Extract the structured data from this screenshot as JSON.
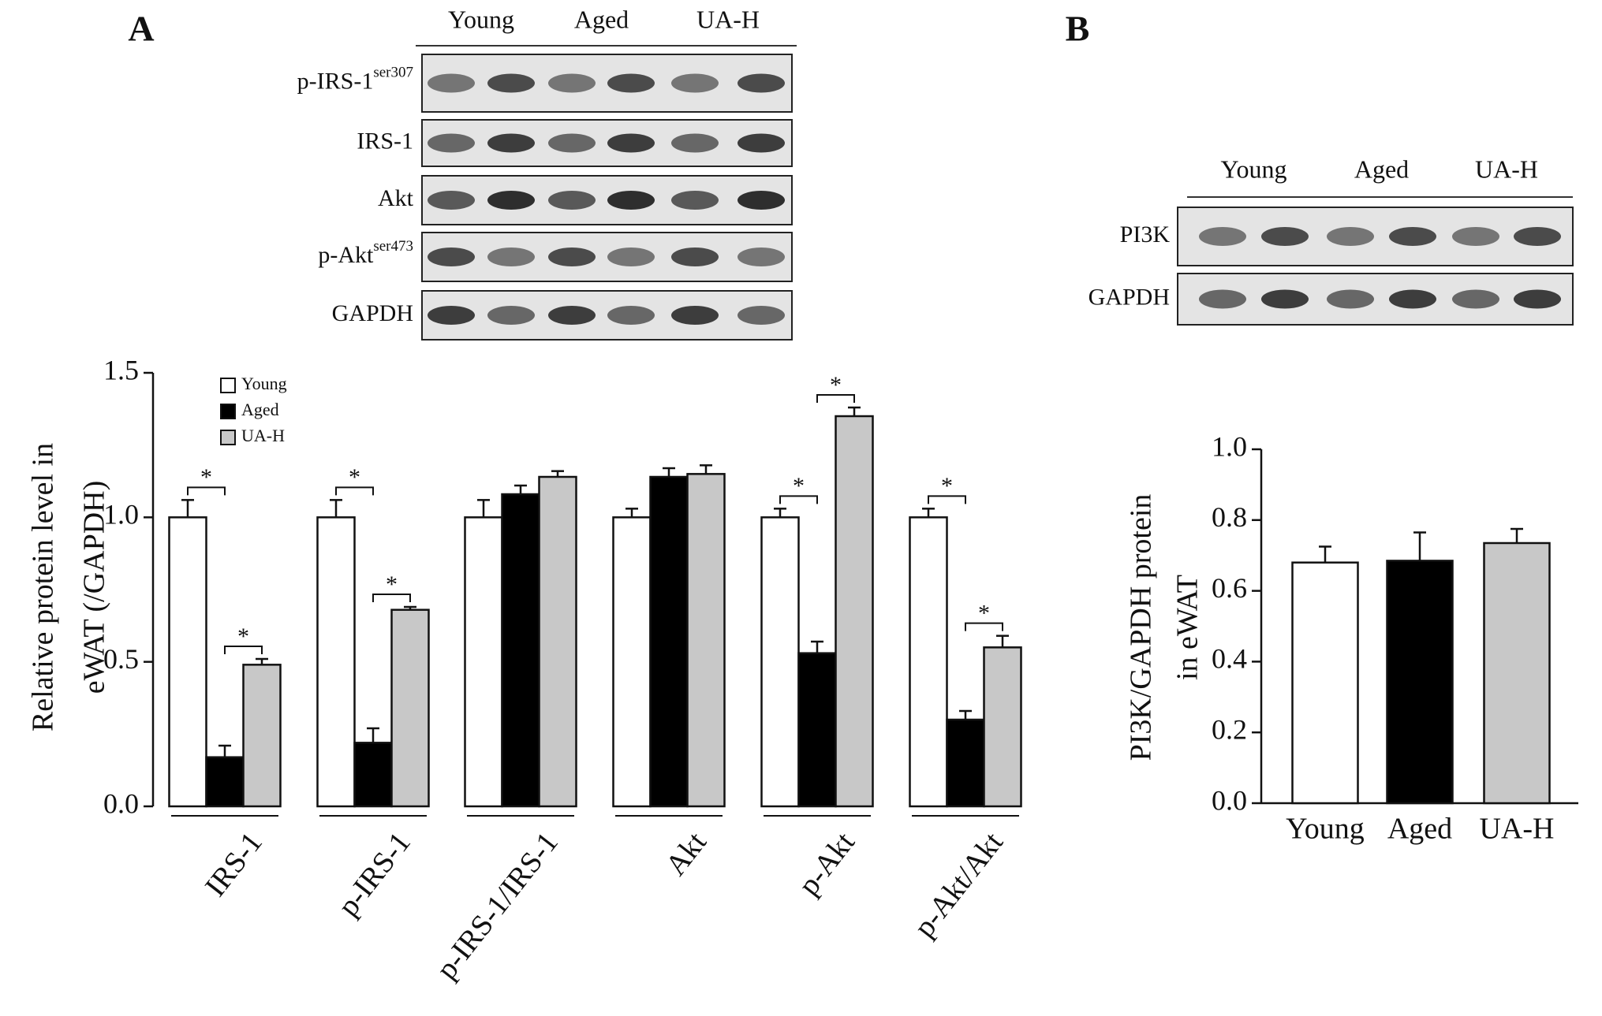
{
  "chart_data": [
    {
      "type": "bar",
      "panel_label": "A",
      "blot": {
        "groups": [
          "Young",
          "Aged",
          "UA-H"
        ],
        "rows": [
          {
            "label": "p-IRS-1",
            "sup": "ser307"
          },
          {
            "label": "IRS-1"
          },
          {
            "label": "Akt"
          },
          {
            "label": "p-Akt",
            "sup": "ser473"
          },
          {
            "label": "GAPDH"
          }
        ]
      },
      "ylabel": [
        "Relative protein level in",
        "eWAT (/GAPDH)"
      ],
      "categories": [
        "IRS-1",
        "p-IRS-1",
        "p-IRS-1/IRS-1",
        "Akt",
        "p-Akt",
        "p-Akt/Akt"
      ],
      "series": [
        {
          "name": "Young",
          "color": "#ffffff",
          "values": [
            1.0,
            1.0,
            1.0,
            1.0,
            1.0,
            1.0
          ],
          "errors": [
            0.06,
            0.06,
            0.06,
            0.03,
            0.03,
            0.03
          ]
        },
        {
          "name": "Aged",
          "color": "#000000",
          "values": [
            0.17,
            0.22,
            1.08,
            1.14,
            0.53,
            0.3
          ],
          "errors": [
            0.04,
            0.05,
            0.03,
            0.03,
            0.04,
            0.03
          ]
        },
        {
          "name": "UA-H",
          "color": "#c8c8c8",
          "values": [
            0.49,
            0.68,
            1.14,
            1.15,
            1.35,
            0.55
          ],
          "errors": [
            0.02,
            0.01,
            0.02,
            0.03,
            0.03,
            0.04
          ]
        }
      ],
      "ylim": [
        0,
        1.5
      ],
      "yticks": [
        {
          "value": 0,
          "label": "0.0"
        },
        0.5,
        {
          "value": 1,
          "label": "1.0"
        },
        1.5
      ],
      "legend": "upper left",
      "significance": [
        {
          "category": 0,
          "between": [
            0,
            1
          ],
          "label": "*"
        },
        {
          "category": 0,
          "between": [
            1,
            2
          ],
          "label": "*"
        },
        {
          "category": 1,
          "between": [
            0,
            1
          ],
          "label": "*"
        },
        {
          "category": 1,
          "between": [
            1,
            2
          ],
          "label": "*"
        },
        {
          "category": 4,
          "between": [
            0,
            1
          ],
          "label": "*"
        },
        {
          "category": 4,
          "between": [
            1,
            2
          ],
          "label": "*"
        },
        {
          "category": 5,
          "between": [
            0,
            1
          ],
          "label": "*"
        },
        {
          "category": 5,
          "between": [
            1,
            2
          ],
          "label": "*"
        }
      ]
    },
    {
      "type": "bar",
      "panel_label": "B",
      "blot": {
        "groups": [
          "Young",
          "Aged",
          "UA-H"
        ],
        "rows": [
          {
            "label": "PI3K"
          },
          {
            "label": "GAPDH"
          }
        ]
      },
      "ylabel": [
        "PI3K/GAPDH protein",
        "in eWAT"
      ],
      "categories": [
        "Young",
        "Aged",
        "UA-H"
      ],
      "values": [
        0.68,
        0.685,
        0.735
      ],
      "errors": [
        0.045,
        0.08,
        0.04
      ],
      "colors": [
        "#ffffff",
        "#000000",
        "#c8c8c8"
      ],
      "ylim": [
        0,
        1
      ],
      "yticks": [
        {
          "value": 0,
          "label": "0.0"
        },
        0.2,
        0.4,
        0.6,
        0.8,
        {
          "value": 1,
          "label": "1.0"
        }
      ]
    }
  ]
}
